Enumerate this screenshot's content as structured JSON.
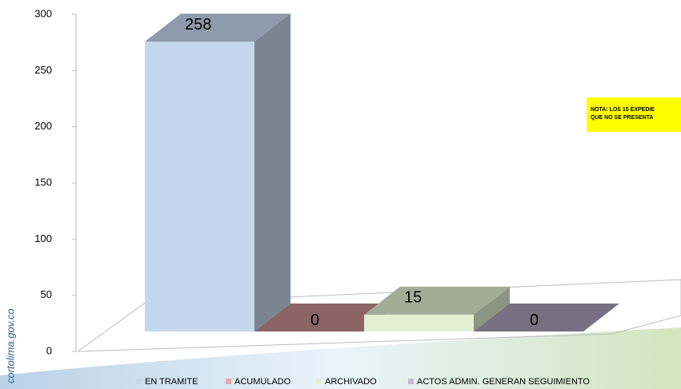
{
  "chart_data": {
    "type": "bar3d",
    "series": [
      {
        "name": "EN TRAMITE",
        "color": "#c5d7ec",
        "values": [
          258
        ]
      },
      {
        "name": "ACUMULADO",
        "color": "#e6a9a6",
        "values": [
          0
        ]
      },
      {
        "name": "ARCHIVADO",
        "color": "#e3efd0",
        "values": [
          15
        ]
      },
      {
        "name": "ACTOS ADMIN. GENERAN SEGUIMIENTO",
        "color": "#c6b9d8",
        "values": [
          0
        ]
      }
    ],
    "ylim": [
      0,
      300
    ],
    "yticks": [
      0,
      50,
      100,
      150,
      200,
      250,
      300
    ],
    "annotation": [
      "NOTA: LOS 15 EXPEDIE",
      "QUE NO SE PRESENTA"
    ],
    "watermark": "cortolima.gov.co"
  }
}
